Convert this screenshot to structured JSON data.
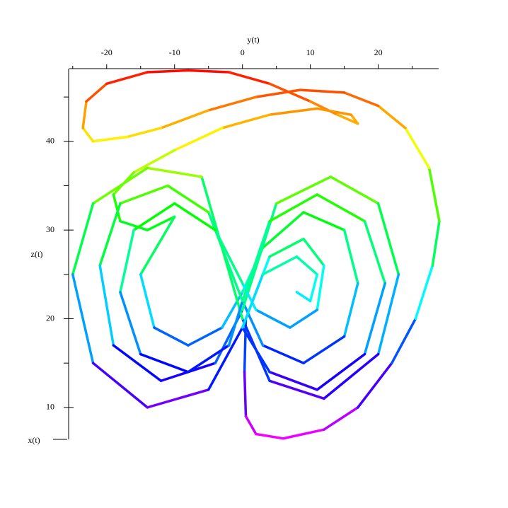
{
  "chart_data": {
    "type": "line",
    "colormap": "hsv",
    "xlabel": "y(t)",
    "ylabel": "z(t)",
    "zlabel": "x(t)",
    "xlim": [
      -25.5,
      28.9
    ],
    "xticks": [
      -20,
      -10,
      0,
      10,
      20
    ],
    "xminorticks": [
      -25,
      -15,
      -5,
      5,
      15,
      25
    ],
    "ylim": [
      6.4,
      48.2
    ],
    "yticks": [
      10,
      20,
      30,
      40
    ],
    "yminorticks": [
      15,
      25,
      35,
      45
    ],
    "x": [
      0.5,
      0.3,
      0.5,
      2,
      6,
      12,
      17,
      22,
      25.5,
      28,
      29,
      27.5,
      24,
      20,
      15,
      8.5,
      2,
      -5,
      -12,
      -17,
      -22,
      -23.5,
      -23,
      -20,
      -14,
      -8,
      -2,
      4,
      10,
      14,
      17,
      16,
      11,
      4,
      -3,
      -10,
      -16,
      -19,
      -18,
      -14,
      -10,
      -15,
      -13,
      -8,
      -3,
      0,
      3,
      9,
      15,
      17,
      15,
      9,
      3,
      0,
      -5,
      -11,
      -18,
      -21,
      -19,
      -12,
      -4,
      0,
      5,
      13,
      20,
      23,
      20,
      12,
      4,
      0,
      -6,
      -14,
      -22,
      -25,
      -22,
      -14,
      -5,
      0,
      4,
      9,
      12,
      11,
      7,
      2,
      0,
      -4,
      -10,
      -16,
      -18,
      -15,
      -8,
      -2,
      0,
      4,
      11,
      18,
      21,
      18,
      11,
      4,
      0,
      3,
      8,
      11,
      10,
      8
    ],
    "values": [
      20,
      14,
      9,
      7,
      6.5,
      7.5,
      10,
      15,
      20,
      26,
      31,
      37,
      41.5,
      44,
      45.5,
      45.8,
      45,
      43.5,
      41.5,
      40.5,
      40,
      41.5,
      44.5,
      46.5,
      47.8,
      48,
      47.8,
      46.5,
      44.5,
      43,
      42,
      43,
      43.7,
      43,
      41.5,
      39,
      36.5,
      34,
      31,
      30,
      31.5,
      25,
      19,
      17,
      19,
      23,
      28,
      32,
      30,
      24,
      18,
      15,
      17,
      22,
      32,
      35,
      33,
      26,
      17,
      13,
      15,
      21,
      33,
      36,
      33,
      25,
      16,
      11,
      13,
      20,
      36,
      37,
      33,
      25,
      15,
      10,
      12,
      19,
      27,
      29,
      26,
      21,
      19,
      21,
      24,
      30,
      33,
      30,
      23,
      16,
      14,
      17,
      22,
      31,
      34,
      31,
      24,
      16,
      12,
      14,
      19,
      25,
      27,
      25,
      22,
      23
    ]
  }
}
